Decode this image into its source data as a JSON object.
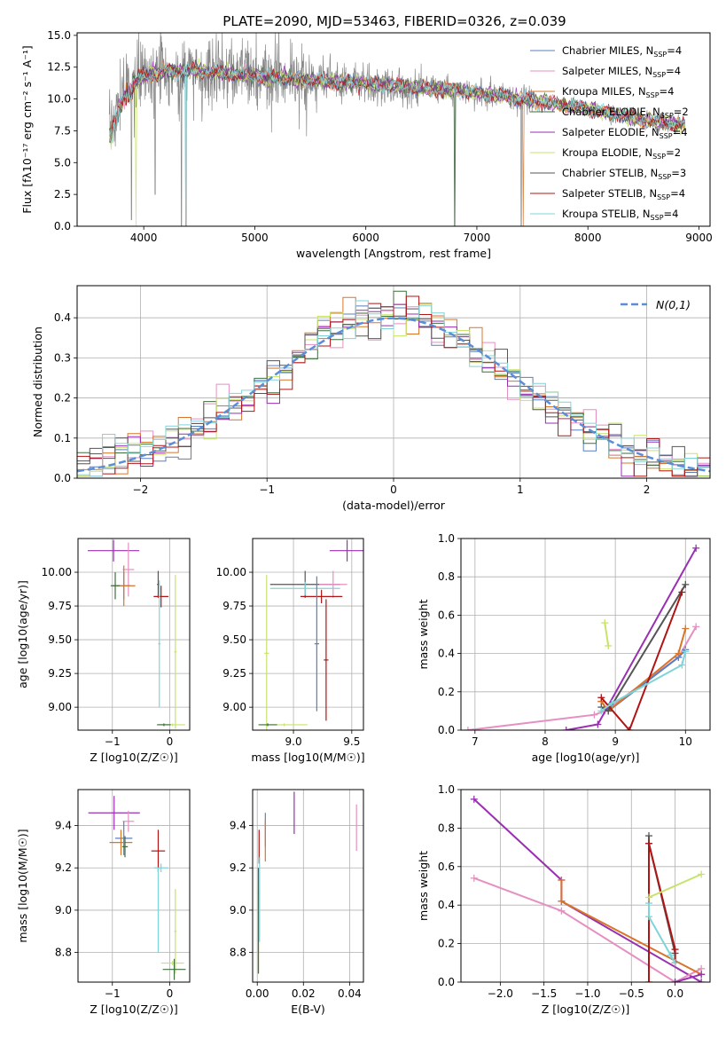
{
  "figure": {
    "title": "PLATE=2090, MJD=53463, FIBERID=0326, z=0.039"
  },
  "models": [
    {
      "name": "Chabrier MILES",
      "nssp": "4",
      "color": "#5b7fbd"
    },
    {
      "name": "Salpeter MILES",
      "nssp": "4",
      "color": "#e68fc2"
    },
    {
      "name": "Kroupa MILES",
      "nssp": "4",
      "color": "#d9752b"
    },
    {
      "name": "Chabrier ELODIE",
      "nssp": "2",
      "color": "#3d6e3d"
    },
    {
      "name": "Salpeter ELODIE",
      "nssp": "4",
      "color": "#9a2fb2"
    },
    {
      "name": "Kroupa ELODIE",
      "nssp": "2",
      "color": "#c6e36a"
    },
    {
      "name": "Chabrier STELIB",
      "nssp": "3",
      "color": "#555555"
    },
    {
      "name": "Salpeter STELIB",
      "nssp": "4",
      "color": "#b01515"
    },
    {
      "name": "Kroupa STELIB",
      "nssp": "4",
      "color": "#7fd4d9"
    }
  ],
  "chart_data": [
    {
      "id": "spectrum",
      "type": "line",
      "xlabel": "wavelength [Angstrom, rest frame]",
      "xlim": [
        3400,
        9100
      ],
      "ylim": [
        0,
        15.2
      ],
      "xticks": [
        4000,
        5000,
        6000,
        7000,
        8000,
        9000
      ],
      "yticks": [
        0.0,
        2.5,
        5.0,
        7.5,
        10.0,
        12.5,
        15.0
      ],
      "data_color": "#888888",
      "data_range": [
        3690,
        8880
      ],
      "continuum": [
        [
          3690,
          7.4
        ],
        [
          3800,
          10.3
        ],
        [
          3900,
          11.2
        ],
        [
          4000,
          11.8
        ],
        [
          4200,
          12.2
        ],
        [
          4500,
          12.2
        ],
        [
          5000,
          11.8
        ],
        [
          5500,
          11.5
        ],
        [
          6000,
          11.2
        ],
        [
          6500,
          10.9
        ],
        [
          7000,
          10.5
        ],
        [
          7500,
          9.9
        ],
        [
          8000,
          9.2
        ],
        [
          8500,
          8.4
        ],
        [
          8880,
          7.9
        ]
      ],
      "dips": [
        [
          3890,
          0.5
        ],
        [
          3935,
          9.5
        ],
        [
          4102,
          2.5
        ],
        [
          4340,
          0.0
        ],
        [
          4380,
          0.0
        ],
        [
          6800,
          0.0
        ],
        [
          7400,
          0.0
        ]
      ]
    },
    {
      "id": "residuals",
      "type": "bar",
      "xlabel": "(data-model)/error",
      "ylabel": "Normed distribution",
      "xlim": [
        -2.5,
        2.5
      ],
      "ylim": [
        0,
        0.48
      ],
      "xticks": [
        -2,
        -1,
        0,
        1,
        2
      ],
      "yticks": [
        0.0,
        0.1,
        0.2,
        0.3,
        0.4
      ],
      "bin_width": 0.1,
      "legend": "N(0,1)",
      "gauss_color": "#5b8ed6"
    },
    {
      "id": "age-z",
      "type": "scatter",
      "xlabel": "Z [log10(Z/Z☉)]",
      "ylabel": "age  [log10(age/yr)]",
      "xlim": [
        -1.6,
        0.35
      ],
      "ylim": [
        8.83,
        10.25
      ],
      "xticks": [
        -1,
        0
      ],
      "yticks": [
        9.0,
        9.25,
        9.5,
        9.75,
        10.0
      ],
      "points": [
        {
          "m": 4,
          "x": -0.98,
          "y": 10.16,
          "xerr": 0.45,
          "yerr": 0.08
        },
        {
          "m": 1,
          "x": -0.72,
          "y": 10.02,
          "xerr": 0.1,
          "yerr": 0.2
        },
        {
          "m": 0,
          "x": -0.8,
          "y": 9.9,
          "xerr": 0.12,
          "yerr": 0.1
        },
        {
          "m": 2,
          "x": -0.8,
          "y": 9.9,
          "xerr": 0.2,
          "yerr": 0.15
        },
        {
          "m": 3,
          "x": -0.95,
          "y": 9.9,
          "xerr": 0.08,
          "yerr": 0.1
        },
        {
          "m": 6,
          "x": -0.2,
          "y": 9.91,
          "xerr": 0.02,
          "yerr": 0.1
        },
        {
          "m": 7,
          "x": -0.15,
          "y": 9.82,
          "xerr": 0.13,
          "yerr": 0.08
        },
        {
          "m": 8,
          "x": -0.18,
          "y": 9.47,
          "xerr": 0.02,
          "yerr": 0.47
        },
        {
          "m": 5,
          "x": 0.1,
          "y": 9.41,
          "xerr": 0.02,
          "yerr": 0.57
        },
        {
          "m": 5,
          "x": 0.05,
          "y": 8.87,
          "xerr": 0.22,
          "yerr": 0.01
        },
        {
          "m": 3,
          "x": -0.1,
          "y": 8.87,
          "xerr": 0.12,
          "yerr": 0.01
        }
      ]
    },
    {
      "id": "age-mass",
      "type": "scatter",
      "xlabel": "mass [log10(M/M☉)]",
      "xlim": [
        8.65,
        9.6
      ],
      "ylim": [
        8.83,
        10.25
      ],
      "xticks": [
        9.0,
        9.5
      ],
      "yticks": [
        9.0,
        9.25,
        9.5,
        9.75,
        10.0
      ],
      "points": [
        {
          "m": 4,
          "x": 9.46,
          "y": 10.16,
          "xerr": 0.15,
          "yerr": 0.08
        },
        {
          "m": 6,
          "x": 9.1,
          "y": 9.91,
          "xerr": 0.3,
          "yerr": 0.1
        },
        {
          "m": 1,
          "x": 9.34,
          "y": 9.91,
          "xerr": 0.12,
          "yerr": 0.1
        },
        {
          "m": 8,
          "x": 9.1,
          "y": 9.88,
          "xerr": 0.3,
          "yerr": 0.05
        },
        {
          "m": 7,
          "x": 9.24,
          "y": 9.82,
          "xerr": 0.18,
          "yerr": 0.05
        },
        {
          "m": 0,
          "x": 9.2,
          "y": 9.47,
          "xerr": 0.02,
          "yerr": 0.5
        },
        {
          "m": 7,
          "x": 9.28,
          "y": 9.35,
          "xerr": 0.02,
          "yerr": 0.45
        },
        {
          "m": 5,
          "x": 8.77,
          "y": 9.4,
          "xerr": 0.02,
          "yerr": 0.58
        },
        {
          "m": 5,
          "x": 8.92,
          "y": 8.87,
          "xerr": 0.2,
          "yerr": 0.01
        },
        {
          "m": 3,
          "x": 8.78,
          "y": 8.87,
          "xerr": 0.08,
          "yerr": 0.01
        }
      ]
    },
    {
      "id": "weight-age",
      "type": "line",
      "xlabel": "age  [log10(age/yr)]",
      "ylabel": "mass weight",
      "xlim": [
        6.8,
        10.35
      ],
      "ylim": [
        0,
        1.0
      ],
      "xticks": [
        7,
        8,
        9,
        10
      ],
      "yticks": [
        0.0,
        0.2,
        0.4,
        0.6,
        0.8,
        1.0
      ],
      "series": [
        {
          "m": 1,
          "x": [
            6.9,
            8.7,
            8.85,
            9.9,
            10.15
          ],
          "y": [
            0.0,
            0.08,
            0.1,
            0.38,
            0.54
          ]
        },
        {
          "m": 0,
          "x": [
            8.8,
            8.9,
            9.9,
            10.0
          ],
          "y": [
            0.15,
            0.1,
            0.38,
            0.42
          ]
        },
        {
          "m": 2,
          "x": [
            8.8,
            8.9,
            9.9,
            10.0
          ],
          "y": [
            0.15,
            0.1,
            0.4,
            0.53
          ]
        },
        {
          "m": 4,
          "x": [
            8.3,
            8.75,
            10.15
          ],
          "y": [
            0.0,
            0.03,
            0.95
          ]
        },
        {
          "m": 6,
          "x": [
            8.8,
            8.9,
            10.0
          ],
          "y": [
            0.12,
            0.1,
            0.76
          ]
        },
        {
          "m": 7,
          "x": [
            8.8,
            9.2,
            9.95
          ],
          "y": [
            0.17,
            0.0,
            0.72
          ]
        },
        {
          "m": 8,
          "x": [
            8.8,
            8.95,
            9.95,
            10.0
          ],
          "y": [
            0.1,
            0.14,
            0.34,
            0.41
          ]
        },
        {
          "m": 5,
          "x": [
            8.85,
            8.9
          ],
          "y": [
            0.56,
            0.44
          ]
        }
      ]
    },
    {
      "id": "mass-z",
      "type": "scatter",
      "xlabel": "Z [log10(Z/Z☉)]",
      "ylabel": "mass [log10(M/M☉)]",
      "xlim": [
        -1.6,
        0.35
      ],
      "ylim": [
        8.66,
        9.57
      ],
      "xticks": [
        -1,
        0
      ],
      "yticks": [
        8.8,
        9.0,
        9.2,
        9.4
      ],
      "points": [
        {
          "m": 4,
          "x": -0.97,
          "y": 9.46,
          "xerr": 0.45,
          "yerr": 0.08
        },
        {
          "m": 1,
          "x": -0.72,
          "y": 9.42,
          "xerr": 0.1,
          "yerr": 0.05
        },
        {
          "m": 0,
          "x": -0.8,
          "y": 9.34,
          "xerr": 0.15,
          "yerr": 0.08
        },
        {
          "m": 2,
          "x": -0.85,
          "y": 9.32,
          "xerr": 0.2,
          "yerr": 0.06
        },
        {
          "m": 3,
          "x": -0.78,
          "y": 9.3,
          "xerr": 0.05,
          "yerr": 0.05
        },
        {
          "m": 7,
          "x": -0.2,
          "y": 9.28,
          "xerr": 0.12,
          "yerr": 0.1
        },
        {
          "m": 8,
          "x": -0.15,
          "y": 9.2,
          "xerr": 0.12,
          "yerr": 0.02
        },
        {
          "m": 8,
          "x": -0.2,
          "y": 9.0,
          "xerr": 0.02,
          "yerr": 0.2
        },
        {
          "m": 5,
          "x": 0.1,
          "y": 8.9,
          "xerr": 0.02,
          "yerr": 0.2
        },
        {
          "m": 5,
          "x": 0.05,
          "y": 8.75,
          "xerr": 0.2,
          "yerr": 0.01
        },
        {
          "m": 3,
          "x": 0.08,
          "y": 8.72,
          "xerr": 0.2,
          "yerr": 0.05
        }
      ]
    },
    {
      "id": "mass-ebv",
      "type": "scatter",
      "xlabel": "E(B-V)",
      "xlim": [
        -0.002,
        0.046
      ],
      "ylim": [
        8.66,
        9.57
      ],
      "xticks": [
        0.0,
        0.02,
        0.04
      ],
      "yticks": [
        8.8,
        9.0,
        9.2,
        9.4
      ],
      "points": [
        {
          "m": 7,
          "x": 0.0008,
          "y": 9.3,
          "xerr": 0,
          "yerr": 0.08
        },
        {
          "m": 5,
          "x": 0.0005,
          "y": 8.9,
          "xerr": 0,
          "yerr": 0.2
        },
        {
          "m": 3,
          "x": 0.0005,
          "y": 8.95,
          "xerr": 0,
          "yerr": 0.25
        },
        {
          "m": 8,
          "x": 0.001,
          "y": 9.05,
          "xerr": 0,
          "yerr": 0.2
        },
        {
          "m": 0,
          "x": 0.0035,
          "y": 9.38,
          "xerr": 0,
          "yerr": 0.08
        },
        {
          "m": 2,
          "x": 0.0035,
          "y": 9.33,
          "xerr": 0,
          "yerr": 0.1
        },
        {
          "m": 4,
          "x": 0.016,
          "y": 9.46,
          "xerr": 0,
          "yerr": 0.1
        },
        {
          "m": 1,
          "x": 0.043,
          "y": 9.39,
          "xerr": 0,
          "yerr": 0.11
        }
      ]
    },
    {
      "id": "weight-z",
      "type": "line",
      "xlabel": "Z [log10(Z/Z☉)]",
      "ylabel": "mass weight",
      "xlim": [
        -2.45,
        0.4
      ],
      "ylim": [
        0,
        1.0
      ],
      "xticks": [
        -2.0,
        -1.5,
        -1.0,
        -0.5,
        0.0
      ],
      "yticks": [
        0.0,
        0.2,
        0.4,
        0.6,
        0.8,
        1.0
      ],
      "series": [
        {
          "m": 4,
          "x": [
            -2.3,
            -1.3,
            -1.3,
            0.3
          ],
          "y": [
            0.95,
            0.53,
            0.42,
            0.0
          ]
        },
        {
          "m": 1,
          "x": [
            -2.3,
            -1.3,
            0.0,
            0.3
          ],
          "y": [
            0.54,
            0.37,
            0.0,
            0.07
          ]
        },
        {
          "m": 2,
          "x": [
            -1.3,
            -1.3,
            0.3
          ],
          "y": [
            0.53,
            0.42,
            0.04
          ]
        },
        {
          "m": 6,
          "x": [
            -0.3,
            -0.3,
            0.0,
            0.0
          ],
          "y": [
            0.76,
            0.72,
            0.15,
            0.1
          ]
        },
        {
          "m": 7,
          "x": [
            -0.3,
            -0.3,
            0.0,
            0.0
          ],
          "y": [
            0.0,
            0.72,
            0.17,
            0.1
          ]
        },
        {
          "m": 8,
          "x": [
            -0.3,
            -0.3,
            -0.05,
            0.0
          ],
          "y": [
            0.41,
            0.34,
            0.14,
            0.1
          ]
        },
        {
          "m": 5,
          "x": [
            -0.3,
            0.3
          ],
          "y": [
            0.44,
            0.56
          ]
        },
        {
          "m": 4,
          "x": [
            0.0,
            0.3
          ],
          "y": [
            0.0,
            0.04
          ]
        }
      ]
    }
  ]
}
